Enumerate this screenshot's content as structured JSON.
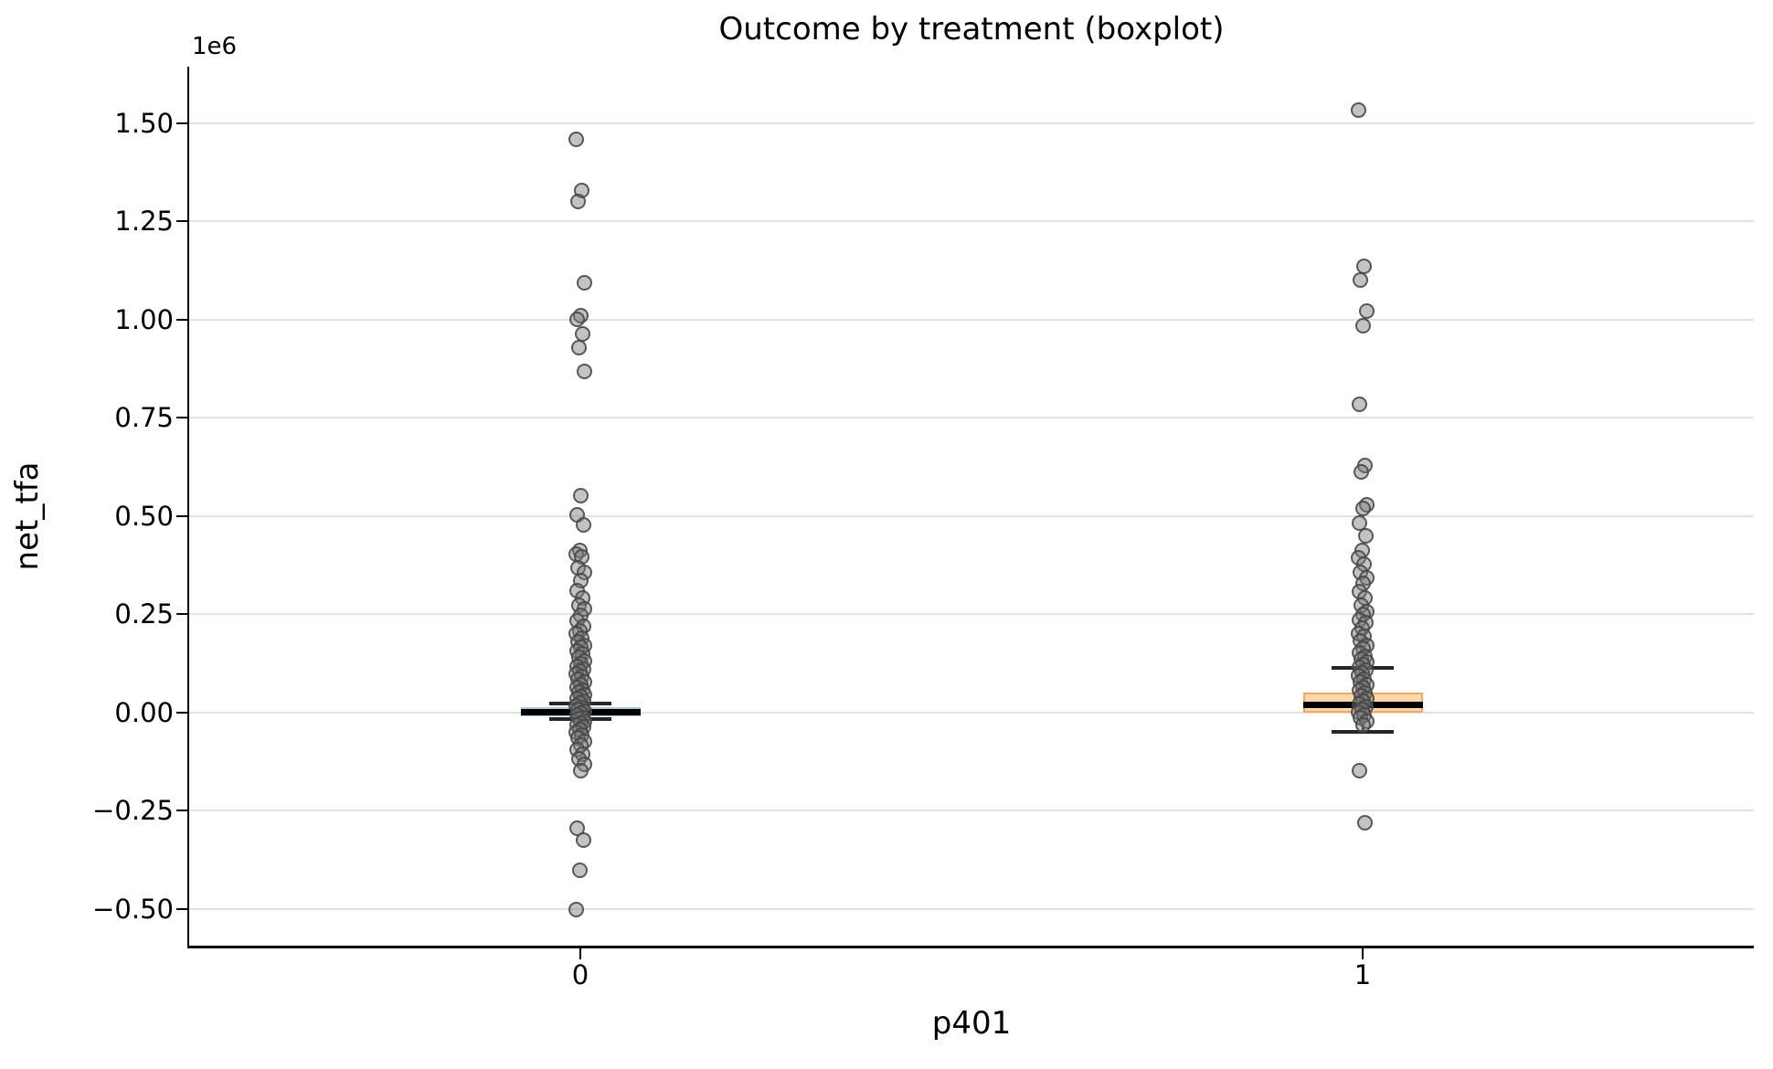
{
  "chart_data": {
    "type": "boxplot",
    "title": "Outcome by treatment (boxplot)",
    "xlabel": "p401",
    "ylabel": "net_tfa",
    "y_offset_text": "1e6",
    "unit_multiplier": 1000000,
    "categories": [
      "0",
      "1"
    ],
    "ylim": [
      -0.593,
      1.644
    ],
    "y_ticks": [
      1.5,
      1.25,
      1.0,
      0.75,
      0.5,
      0.25,
      0.0,
      -0.25,
      -0.5
    ],
    "y_tick_labels": [
      "1.50",
      "1.25",
      "1.00",
      "0.75",
      "0.50",
      "0.25",
      "0.00",
      "−0.25",
      "−0.50"
    ],
    "grid": "horizontal",
    "legend": "none",
    "colors": {
      "grid": "#e2e2e2",
      "spine": "#000000",
      "median": "#000000",
      "whisker": "#262626",
      "point_fill": "rgba(122,122,122,0.45)",
      "point_edge": "rgba(68,68,68,0.85)",
      "box0_fill": "#BCD9EA",
      "box0_edge": "#A6CBDE",
      "box1_fill": "#FBD8AC",
      "box1_edge": "#F2A85F"
    },
    "groups": [
      {
        "label": "0",
        "box": {
          "q1": -0.01,
          "median": 0.001,
          "q3": 0.013,
          "whisker_low": -0.016,
          "whisker_high": 0.023
        },
        "points": [
          1.458,
          1.328,
          1.301,
          1.093,
          1.01,
          1.001,
          0.964,
          0.928,
          0.868,
          0.553,
          0.504,
          0.477,
          0.412,
          0.404,
          0.396,
          0.368,
          0.357,
          0.337,
          0.31,
          0.291,
          0.274,
          0.263,
          0.247,
          0.233,
          0.22,
          0.208,
          0.202,
          0.19,
          0.181,
          0.17,
          0.167,
          0.158,
          0.149,
          0.14,
          0.132,
          0.125,
          0.118,
          0.11,
          0.105,
          0.098,
          0.091,
          0.084,
          0.078,
          0.072,
          0.065,
          0.058,
          0.052,
          0.046,
          0.04,
          0.035,
          0.029,
          0.024,
          0.018,
          0.013,
          0.008,
          0.003,
          -0.002,
          -0.007,
          -0.012,
          -0.016,
          -0.021,
          -0.026,
          -0.031,
          -0.037,
          -0.043,
          -0.049,
          -0.056,
          -0.065,
          -0.074,
          -0.083,
          -0.094,
          -0.105,
          -0.117,
          -0.131,
          -0.147,
          -0.295,
          -0.325,
          -0.402,
          -0.502
        ]
      },
      {
        "label": "1",
        "box": {
          "q1": -0.001,
          "median": 0.019,
          "q3": 0.052,
          "whisker_low": -0.049,
          "whisker_high": 0.114
        },
        "points": [
          1.534,
          1.135,
          1.1,
          1.023,
          0.984,
          0.784,
          0.63,
          0.612,
          0.53,
          0.519,
          0.482,
          0.449,
          0.412,
          0.395,
          0.377,
          0.358,
          0.344,
          0.328,
          0.307,
          0.291,
          0.274,
          0.258,
          0.249,
          0.237,
          0.228,
          0.214,
          0.202,
          0.193,
          0.183,
          0.172,
          0.163,
          0.153,
          0.144,
          0.136,
          0.128,
          0.121,
          0.114,
          0.107,
          0.1,
          0.093,
          0.086,
          0.079,
          0.072,
          0.065,
          0.058,
          0.051,
          0.044,
          0.037,
          0.03,
          0.023,
          0.016,
          0.009,
          0.002,
          -0.005,
          -0.013,
          -0.022,
          -0.032,
          -0.147,
          -0.281
        ]
      }
    ]
  }
}
